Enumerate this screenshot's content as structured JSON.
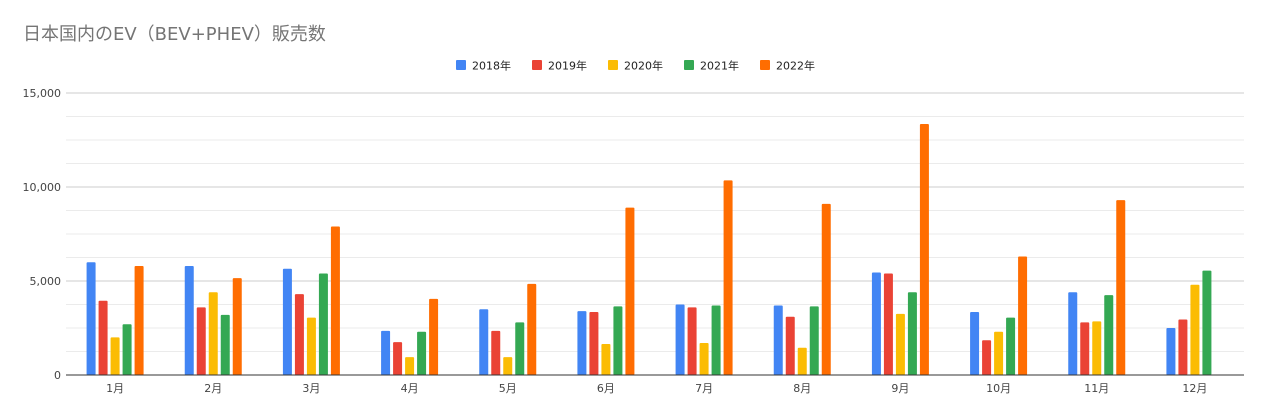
{
  "chart_data": {
    "type": "bar",
    "title": "日本国内のEV（BEV+PHEV）販売数",
    "xlabel": "",
    "ylabel": "",
    "ylim": [
      0,
      15000
    ],
    "yticks": [
      0,
      5000,
      10000,
      15000
    ],
    "ytick_labels": [
      "0",
      "5,000",
      "10,000",
      "15,000"
    ],
    "grid": true,
    "legend_position": "top-center",
    "categories": [
      "1月",
      "2月",
      "3月",
      "4月",
      "5月",
      "6月",
      "7月",
      "8月",
      "9月",
      "10月",
      "11月",
      "12月"
    ],
    "series": [
      {
        "name": "2018年",
        "color": "#4285F4",
        "values": [
          6000,
          5800,
          5650,
          2350,
          3500,
          3400,
          3750,
          3700,
          5450,
          3350,
          4400,
          2500
        ]
      },
      {
        "name": "2019年",
        "color": "#EA4335",
        "values": [
          3950,
          3600,
          4300,
          1750,
          2350,
          3350,
          3600,
          3100,
          5400,
          1850,
          2800,
          2950
        ]
      },
      {
        "name": "2020年",
        "color": "#FBBC04",
        "values": [
          2000,
          4400,
          3050,
          950,
          950,
          1650,
          1700,
          1450,
          3250,
          2300,
          2850,
          4800
        ]
      },
      {
        "name": "2021年",
        "color": "#34A853",
        "values": [
          2700,
          3200,
          5400,
          2300,
          2800,
          3650,
          3700,
          3650,
          4400,
          3050,
          4250,
          5550
        ]
      },
      {
        "name": "2022年",
        "color": "#FF6D01",
        "values": [
          5800,
          5150,
          7900,
          4050,
          4850,
          8900,
          10350,
          9100,
          13350,
          6300,
          9300,
          null
        ]
      }
    ]
  }
}
